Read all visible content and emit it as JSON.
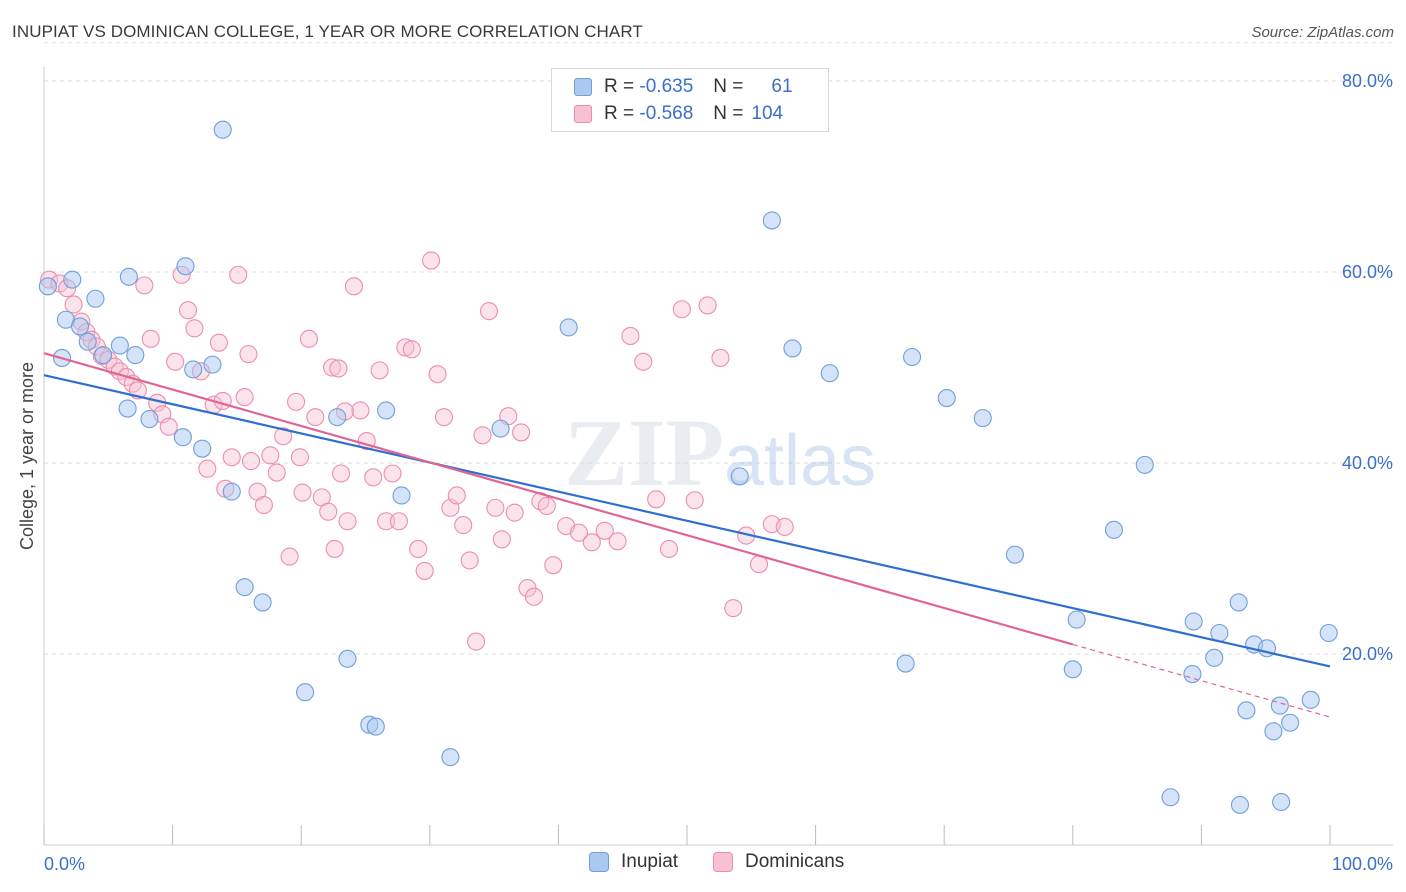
{
  "title": "INUPIAT VS DOMINICAN COLLEGE, 1 YEAR OR MORE CORRELATION CHART",
  "source": "Source: ZipAtlas.com",
  "watermark": "ZIPatlas",
  "legend": {
    "rows": [
      {
        "r_label": "R =",
        "r_value": "-0.635",
        "n_label": "N =",
        "n_value": "61"
      },
      {
        "r_label": "R =",
        "r_value": "-0.568",
        "n_label": "N =",
        "n_value": "104"
      }
    ]
  },
  "colors": {
    "inupiat_fill": "#aac8f0",
    "inupiat_stroke": "#6f9fdc",
    "inupiat_line": "#2f6fd0",
    "dominicans_fill": "#f7c1d2",
    "dominicans_stroke": "#ec8db0",
    "dominicans_line": "#e06595",
    "axis_text": "#3b6fc9",
    "grid": "#dddddd"
  },
  "chart_data": {
    "type": "scatter",
    "title": "INUPIAT VS DOMINICAN COLLEGE, 1 YEAR OR MORE CORRELATION CHART",
    "xlabel": "",
    "ylabel": "College, 1 year or more",
    "xlim": [
      0,
      100
    ],
    "ylim": [
      0,
      84
    ],
    "x_tick_labels": [
      "0.0%",
      "100.0%"
    ],
    "y_ticks": [
      20,
      40,
      60,
      80
    ],
    "y_tick_labels": [
      "20.0%",
      "40.0%",
      "60.0%",
      "80.0%"
    ],
    "grid": true,
    "legend_position": "bottom-center",
    "series": [
      {
        "name": "Inupiat",
        "R": -0.635,
        "N": 61,
        "trend": {
          "x0": 0,
          "y0": 49.2,
          "x1": 100,
          "y1": 18.7
        },
        "points": [
          [
            0.3,
            58.5
          ],
          [
            2.2,
            59.2
          ],
          [
            1.4,
            51.0
          ],
          [
            4.0,
            57.2
          ],
          [
            1.7,
            55.0
          ],
          [
            2.8,
            54.3
          ],
          [
            3.4,
            52.7
          ],
          [
            5.9,
            52.3
          ],
          [
            6.6,
            59.5
          ],
          [
            4.6,
            51.3
          ],
          [
            11.0,
            60.6
          ],
          [
            11.6,
            49.8
          ],
          [
            13.1,
            50.3
          ],
          [
            10.8,
            42.7
          ],
          [
            12.3,
            41.5
          ],
          [
            6.5,
            45.7
          ],
          [
            14.6,
            37.0
          ],
          [
            15.6,
            27.0
          ],
          [
            13.9,
            74.9
          ],
          [
            17.0,
            25.4
          ],
          [
            22.8,
            44.8
          ],
          [
            26.6,
            45.5
          ],
          [
            27.8,
            36.6
          ],
          [
            20.3,
            16.0
          ],
          [
            25.3,
            12.6
          ],
          [
            25.8,
            12.4
          ],
          [
            23.6,
            19.5
          ],
          [
            35.5,
            43.6
          ],
          [
            40.8,
            54.2
          ],
          [
            31.6,
            9.2
          ],
          [
            56.6,
            65.4
          ],
          [
            54.1,
            38.6
          ],
          [
            58.2,
            52.0
          ],
          [
            61.1,
            49.4
          ],
          [
            67.5,
            51.1
          ],
          [
            70.2,
            46.8
          ],
          [
            73.0,
            44.7
          ],
          [
            75.5,
            30.4
          ],
          [
            67.0,
            19.0
          ],
          [
            80.3,
            23.6
          ],
          [
            80.0,
            18.4
          ],
          [
            83.2,
            33.0
          ],
          [
            85.6,
            39.8
          ],
          [
            89.4,
            23.4
          ],
          [
            89.3,
            17.9
          ],
          [
            91.4,
            22.2
          ],
          [
            91.0,
            19.6
          ],
          [
            92.9,
            25.4
          ],
          [
            93.5,
            14.1
          ],
          [
            94.1,
            21.0
          ],
          [
            95.1,
            20.6
          ],
          [
            95.6,
            11.9
          ],
          [
            96.1,
            14.6
          ],
          [
            96.9,
            12.8
          ],
          [
            98.5,
            15.2
          ],
          [
            99.9,
            22.2
          ],
          [
            87.6,
            5.0
          ],
          [
            93.0,
            4.2
          ],
          [
            96.2,
            4.5
          ],
          [
            7.1,
            51.3
          ],
          [
            8.2,
            44.6
          ]
        ]
      },
      {
        "name": "Dominicans",
        "R": -0.568,
        "N": 104,
        "trend": {
          "x0": 0,
          "y0": 51.5,
          "x1": 80,
          "y1": 21.0,
          "dash_x1": 100,
          "dash_y1": 13.4
        },
        "points": [
          [
            0.4,
            59.2
          ],
          [
            1.2,
            58.8
          ],
          [
            1.8,
            58.3
          ],
          [
            2.3,
            56.6
          ],
          [
            2.9,
            54.8
          ],
          [
            3.3,
            53.7
          ],
          [
            3.7,
            52.9
          ],
          [
            4.1,
            52.2
          ],
          [
            4.5,
            51.2
          ],
          [
            5.0,
            50.8
          ],
          [
            5.5,
            50.1
          ],
          [
            5.9,
            49.6
          ],
          [
            6.4,
            49.0
          ],
          [
            6.9,
            48.3
          ],
          [
            7.3,
            47.6
          ],
          [
            7.8,
            58.6
          ],
          [
            8.3,
            53.0
          ],
          [
            8.8,
            46.3
          ],
          [
            9.2,
            45.1
          ],
          [
            9.7,
            43.8
          ],
          [
            10.2,
            50.6
          ],
          [
            10.7,
            59.7
          ],
          [
            11.2,
            56.0
          ],
          [
            11.7,
            54.1
          ],
          [
            12.2,
            49.6
          ],
          [
            12.7,
            39.4
          ],
          [
            13.2,
            46.1
          ],
          [
            13.6,
            52.6
          ],
          [
            14.1,
            37.3
          ],
          [
            14.6,
            40.6
          ],
          [
            15.1,
            59.7
          ],
          [
            15.6,
            46.9
          ],
          [
            16.1,
            40.2
          ],
          [
            16.6,
            37.0
          ],
          [
            17.1,
            35.6
          ],
          [
            17.6,
            40.8
          ],
          [
            18.1,
            39.0
          ],
          [
            18.6,
            42.8
          ],
          [
            19.1,
            30.2
          ],
          [
            19.6,
            46.4
          ],
          [
            20.1,
            36.9
          ],
          [
            20.6,
            53.0
          ],
          [
            21.1,
            44.8
          ],
          [
            21.6,
            36.4
          ],
          [
            22.1,
            34.9
          ],
          [
            22.6,
            31.0
          ],
          [
            23.1,
            38.9
          ],
          [
            23.6,
            33.9
          ],
          [
            24.1,
            58.5
          ],
          [
            24.6,
            45.5
          ],
          [
            25.1,
            42.3
          ],
          [
            25.6,
            38.5
          ],
          [
            26.1,
            49.7
          ],
          [
            26.6,
            33.9
          ],
          [
            27.1,
            38.9
          ],
          [
            27.6,
            33.9
          ],
          [
            28.1,
            52.1
          ],
          [
            28.6,
            51.9
          ],
          [
            29.1,
            31.0
          ],
          [
            29.6,
            28.7
          ],
          [
            30.1,
            61.2
          ],
          [
            30.6,
            49.3
          ],
          [
            31.1,
            44.8
          ],
          [
            31.6,
            35.3
          ],
          [
            32.1,
            36.6
          ],
          [
            32.6,
            33.5
          ],
          [
            33.1,
            29.8
          ],
          [
            33.6,
            21.3
          ],
          [
            34.1,
            42.9
          ],
          [
            34.6,
            55.9
          ],
          [
            35.1,
            35.3
          ],
          [
            35.6,
            32.0
          ],
          [
            36.1,
            44.9
          ],
          [
            36.6,
            34.8
          ],
          [
            37.1,
            43.2
          ],
          [
            37.6,
            26.9
          ],
          [
            38.1,
            26.0
          ],
          [
            38.6,
            36.0
          ],
          [
            39.1,
            35.5
          ],
          [
            39.6,
            29.3
          ],
          [
            40.6,
            33.4
          ],
          [
            41.6,
            32.7
          ],
          [
            42.6,
            31.7
          ],
          [
            43.6,
            32.9
          ],
          [
            44.6,
            31.8
          ],
          [
            45.6,
            53.3
          ],
          [
            46.6,
            50.6
          ],
          [
            47.6,
            36.2
          ],
          [
            48.6,
            31.0
          ],
          [
            49.6,
            56.1
          ],
          [
            50.6,
            36.1
          ],
          [
            51.6,
            56.5
          ],
          [
            52.6,
            51.0
          ],
          [
            53.6,
            24.8
          ],
          [
            54.6,
            32.4
          ],
          [
            55.6,
            29.4
          ],
          [
            56.6,
            33.6
          ],
          [
            57.6,
            33.3
          ],
          [
            13.9,
            46.5
          ],
          [
            15.9,
            51.4
          ],
          [
            19.9,
            40.6
          ],
          [
            22.4,
            50.0
          ],
          [
            22.9,
            49.9
          ],
          [
            23.4,
            45.4
          ]
        ]
      }
    ]
  }
}
